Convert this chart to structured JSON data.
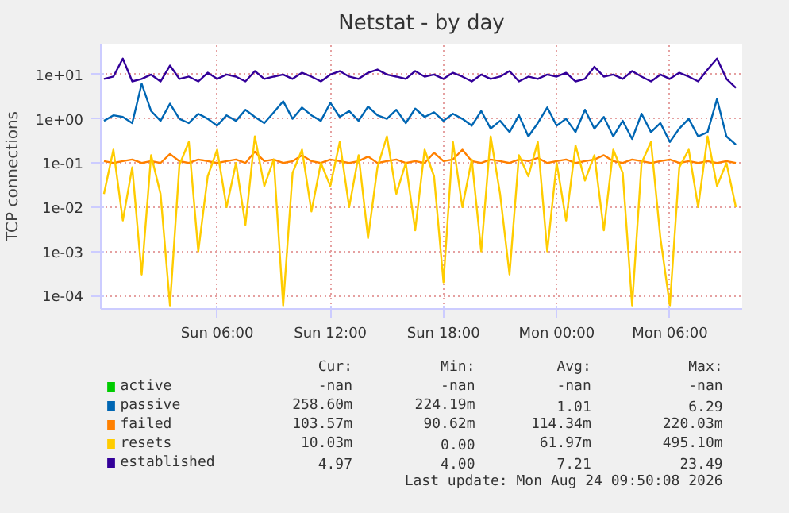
{
  "chart_data": {
    "type": "line",
    "title": "Netstat - by day",
    "ylabel": "TCP connections",
    "x": [
      "2026-08-23T00:00",
      "2026-08-23T00:30",
      "2026-08-23T01:00",
      "2026-08-23T01:30",
      "2026-08-23T02:00",
      "2026-08-23T02:30",
      "2026-08-23T03:00",
      "2026-08-23T03:30",
      "2026-08-23T04:00",
      "2026-08-23T04:30",
      "2026-08-23T05:00",
      "2026-08-23T05:30",
      "2026-08-23T06:00",
      "2026-08-23T06:30",
      "2026-08-23T07:00",
      "2026-08-23T07:30",
      "2026-08-23T08:00",
      "2026-08-23T08:30",
      "2026-08-23T09:00",
      "2026-08-23T09:30",
      "2026-08-23T10:00",
      "2026-08-23T10:30",
      "2026-08-23T11:00",
      "2026-08-23T11:30",
      "2026-08-23T12:00",
      "2026-08-23T12:30",
      "2026-08-23T13:00",
      "2026-08-23T13:30",
      "2026-08-23T14:00",
      "2026-08-23T14:30",
      "2026-08-23T15:00",
      "2026-08-23T15:30",
      "2026-08-23T16:00",
      "2026-08-23T16:30",
      "2026-08-23T17:00",
      "2026-08-23T17:30",
      "2026-08-23T18:00",
      "2026-08-23T18:30",
      "2026-08-23T19:00",
      "2026-08-23T19:30",
      "2026-08-23T20:00",
      "2026-08-23T20:30",
      "2026-08-23T21:00",
      "2026-08-23T21:30",
      "2026-08-23T22:00",
      "2026-08-23T22:30",
      "2026-08-23T23:00",
      "2026-08-23T23:30",
      "2026-08-24T00:00",
      "2026-08-24T00:30",
      "2026-08-24T01:00",
      "2026-08-24T01:30",
      "2026-08-24T02:00",
      "2026-08-24T02:30",
      "2026-08-24T03:00",
      "2026-08-24T03:30",
      "2026-08-24T04:00",
      "2026-08-24T04:30",
      "2026-08-24T05:00",
      "2026-08-24T05:30",
      "2026-08-24T06:00",
      "2026-08-24T06:30",
      "2026-08-24T07:00",
      "2026-08-24T07:30",
      "2026-08-24T08:00",
      "2026-08-24T08:30",
      "2026-08-24T09:00",
      "2026-08-24T09:30"
    ],
    "series": [
      {
        "name": "active",
        "color": "#00cc00",
        "values": [
          null,
          null,
          null,
          null,
          null,
          null,
          null,
          null,
          null,
          null,
          null,
          null,
          null,
          null,
          null,
          null,
          null,
          null,
          null,
          null,
          null,
          null,
          null,
          null,
          null,
          null,
          null,
          null,
          null,
          null,
          null,
          null,
          null,
          null,
          null,
          null,
          null,
          null,
          null,
          null,
          null,
          null,
          null,
          null,
          null,
          null,
          null,
          null,
          null,
          null,
          null,
          null,
          null,
          null,
          null,
          null,
          null,
          null,
          null,
          null,
          null,
          null,
          null,
          null,
          null,
          null,
          null,
          null
        ]
      },
      {
        "name": "passive",
        "color": "#0066b3",
        "values": [
          0.9,
          1.2,
          1.1,
          0.8,
          6.2,
          1.5,
          0.9,
          2.2,
          1.0,
          0.8,
          1.3,
          1.0,
          0.7,
          1.2,
          0.9,
          1.6,
          1.1,
          0.8,
          1.4,
          2.5,
          1.0,
          1.8,
          1.2,
          0.9,
          2.3,
          1.1,
          1.5,
          0.9,
          1.9,
          1.2,
          1.0,
          1.6,
          0.8,
          1.7,
          1.1,
          1.4,
          0.9,
          1.3,
          1.0,
          0.7,
          1.5,
          0.6,
          0.9,
          0.5,
          1.2,
          0.4,
          0.8,
          1.8,
          0.7,
          1.0,
          0.5,
          1.6,
          0.6,
          1.1,
          0.4,
          0.9,
          0.35,
          1.3,
          0.5,
          0.8,
          0.3,
          0.6,
          1.0,
          0.4,
          0.5,
          2.8,
          0.4,
          0.26
        ]
      },
      {
        "name": "failed",
        "color": "#ff8000",
        "values": [
          0.11,
          0.1,
          0.11,
          0.12,
          0.1,
          0.11,
          0.1,
          0.16,
          0.11,
          0.1,
          0.12,
          0.11,
          0.1,
          0.11,
          0.12,
          0.1,
          0.18,
          0.11,
          0.12,
          0.1,
          0.11,
          0.15,
          0.11,
          0.1,
          0.12,
          0.11,
          0.1,
          0.11,
          0.14,
          0.1,
          0.11,
          0.12,
          0.1,
          0.11,
          0.1,
          0.17,
          0.11,
          0.12,
          0.2,
          0.11,
          0.1,
          0.12,
          0.11,
          0.1,
          0.12,
          0.11,
          0.13,
          0.1,
          0.11,
          0.12,
          0.1,
          0.11,
          0.12,
          0.15,
          0.11,
          0.1,
          0.12,
          0.11,
          0.1,
          0.11,
          0.12,
          0.1,
          0.11,
          0.1,
          0.11,
          0.1,
          0.11,
          0.1
        ]
      },
      {
        "name": "resets",
        "color": "#ffcc00",
        "values": [
          0.02,
          0.2,
          0.005,
          0.08,
          0.0003,
          0.15,
          0.02,
          6e-05,
          0.09,
          0.3,
          0.001,
          0.05,
          0.2,
          0.01,
          0.1,
          0.004,
          0.4,
          0.03,
          0.12,
          6e-05,
          0.06,
          0.2,
          0.008,
          0.1,
          0.03,
          0.3,
          0.01,
          0.15,
          0.002,
          0.08,
          0.4,
          0.02,
          0.1,
          0.003,
          0.2,
          0.05,
          0.0002,
          0.3,
          0.01,
          0.12,
          0.001,
          0.4,
          0.02,
          0.0003,
          0.15,
          0.05,
          0.3,
          0.001,
          0.1,
          0.005,
          0.25,
          0.04,
          0.15,
          0.003,
          0.2,
          0.06,
          6e-05,
          0.1,
          0.3,
          0.002,
          6e-05,
          0.08,
          0.2,
          0.01,
          0.4,
          0.03,
          0.1,
          0.01
        ]
      },
      {
        "name": "established",
        "color": "#330099",
        "values": [
          8,
          9,
          23,
          7,
          8,
          10,
          7,
          16,
          8,
          9,
          7,
          11,
          8,
          10,
          9,
          7,
          12,
          8,
          9,
          10,
          8,
          11,
          9,
          7,
          10,
          12,
          9,
          8,
          11,
          13,
          10,
          9,
          8,
          12,
          9,
          10,
          8,
          11,
          9,
          7,
          10,
          8,
          9,
          12,
          7,
          9,
          8,
          10,
          9,
          11,
          7,
          8,
          15,
          9,
          10,
          8,
          12,
          9,
          7,
          10,
          8,
          11,
          9,
          7,
          13,
          23,
          8,
          5
        ]
      }
    ],
    "xlim": [
      "2026-08-22T23:50",
      "2026-08-24T09:50"
    ],
    "xticks": [
      {
        "value": "2026-08-23T06:00",
        "label": "Sun 06:00"
      },
      {
        "value": "2026-08-23T12:00",
        "label": "Sun 12:00"
      },
      {
        "value": "2026-08-23T18:00",
        "label": "Sun 18:00"
      },
      {
        "value": "2026-08-24T00:00",
        "label": "Mon 00:00"
      },
      {
        "value": "2026-08-24T06:00",
        "label": "Mon 06:00"
      }
    ],
    "ylim": [
      5e-05,
      50
    ],
    "yticks": [
      {
        "value": 0.0001,
        "label": "1e-04"
      },
      {
        "value": 0.001,
        "label": "1e-03"
      },
      {
        "value": 0.01,
        "label": "1e-02"
      },
      {
        "value": 0.1,
        "label": "1e-01"
      },
      {
        "value": 1,
        "label": "1e+00"
      },
      {
        "value": 10,
        "label": "1e+01"
      }
    ],
    "log": "y",
    "grid": true,
    "legend": "bottom",
    "marker": "none",
    "line_style": "solid",
    "annotations": [
      "Cur:",
      "Min:",
      "Avg:",
      "Max:",
      "-nan",
      "-nan",
      "-nan",
      "-nan",
      "258.60m",
      "224.19m",
      "1.01",
      "6.29",
      "103.57m",
      "90.62m",
      "114.34m",
      "220.03m",
      "10.03m",
      "0.00",
      "61.97m",
      "495.10m",
      "4.97",
      "4.00",
      "7.21",
      "23.49",
      "Last update: Mon Aug 24 09:50:08 2026"
    ]
  }
}
